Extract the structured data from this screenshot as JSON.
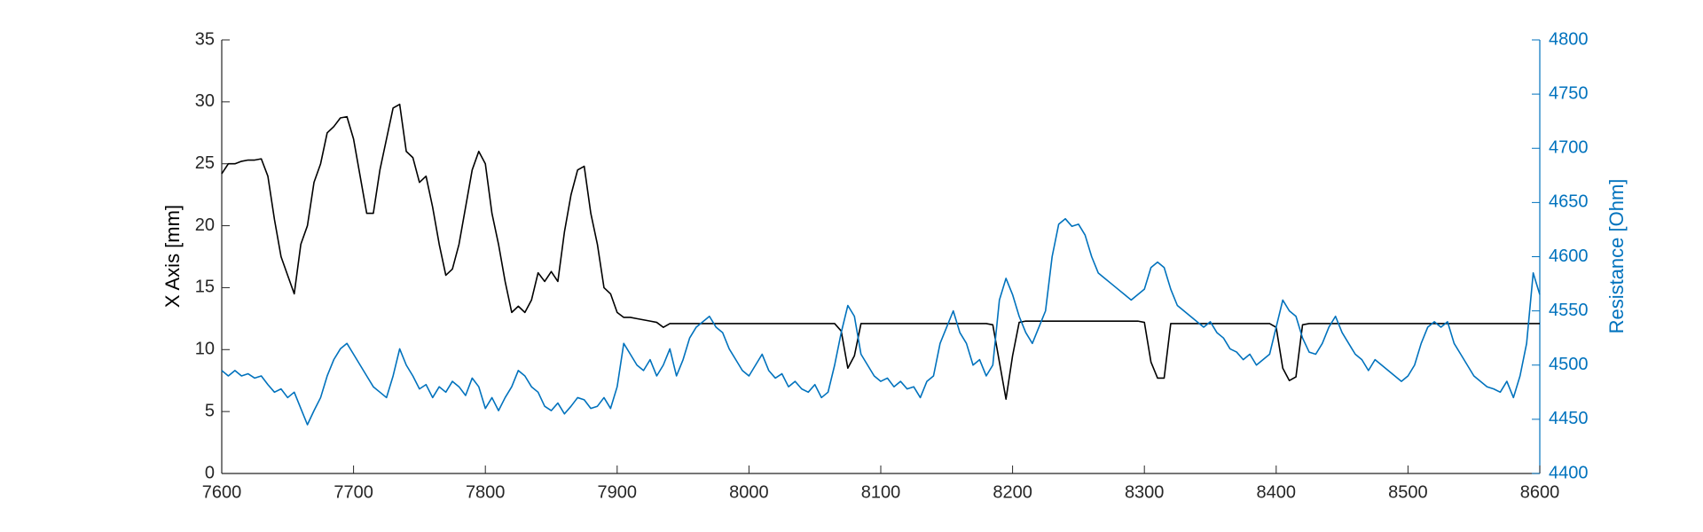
{
  "chart_data": {
    "type": "line",
    "ylabel": "X Axis [mm]",
    "y2label": "Resistance [Ohm]",
    "x": [
      7600,
      7605,
      7610,
      7615,
      7620,
      7625,
      7630,
      7635,
      7640,
      7645,
      7650,
      7655,
      7660,
      7665,
      7670,
      7675,
      7680,
      7685,
      7690,
      7695,
      7700,
      7705,
      7710,
      7715,
      7720,
      7725,
      7730,
      7735,
      7740,
      7745,
      7750,
      7755,
      7760,
      7765,
      7770,
      7775,
      7780,
      7785,
      7790,
      7795,
      7800,
      7805,
      7810,
      7815,
      7820,
      7825,
      7830,
      7835,
      7840,
      7845,
      7850,
      7855,
      7860,
      7865,
      7870,
      7875,
      7880,
      7885,
      7890,
      7895,
      7900,
      7905,
      7910,
      7915,
      7920,
      7925,
      7930,
      7935,
      7940,
      7945,
      7950,
      7955,
      7960,
      7965,
      7970,
      7975,
      7980,
      7985,
      7990,
      7995,
      8000,
      8005,
      8010,
      8015,
      8020,
      8025,
      8030,
      8035,
      8040,
      8045,
      8050,
      8055,
      8060,
      8065,
      8070,
      8075,
      8080,
      8085,
      8090,
      8095,
      8100,
      8105,
      8110,
      8115,
      8120,
      8125,
      8130,
      8135,
      8140,
      8145,
      8150,
      8155,
      8160,
      8165,
      8170,
      8175,
      8180,
      8185,
      8190,
      8195,
      8200,
      8205,
      8210,
      8215,
      8220,
      8225,
      8230,
      8235,
      8240,
      8245,
      8250,
      8255,
      8260,
      8265,
      8270,
      8275,
      8280,
      8285,
      8290,
      8295,
      8300,
      8305,
      8310,
      8315,
      8320,
      8325,
      8330,
      8335,
      8340,
      8345,
      8350,
      8355,
      8360,
      8365,
      8370,
      8375,
      8380,
      8385,
      8390,
      8395,
      8400,
      8405,
      8410,
      8415,
      8420,
      8425,
      8430,
      8435,
      8440,
      8445,
      8450,
      8455,
      8460,
      8465,
      8470,
      8475,
      8480,
      8485,
      8490,
      8495,
      8500,
      8505,
      8510,
      8515,
      8520,
      8525,
      8530,
      8535,
      8540,
      8545,
      8550,
      8555,
      8560,
      8565,
      8570,
      8575,
      8580,
      8585,
      8590,
      8595,
      8600
    ],
    "xlim": [
      7600,
      8600
    ],
    "xticks": [
      7600,
      7700,
      7800,
      7900,
      8000,
      8100,
      8200,
      8300,
      8400,
      8500,
      8600
    ],
    "ylim": [
      0,
      35
    ],
    "yticks": [
      0,
      5,
      10,
      15,
      20,
      25,
      30,
      35
    ],
    "y2lim": [
      4400,
      4800
    ],
    "y2ticks": [
      4400,
      4450,
      4500,
      4550,
      4600,
      4650,
      4700,
      4750,
      4800
    ],
    "series": [
      {
        "color": "#000000",
        "values": [
          24.2,
          25,
          25,
          25.2,
          25.3,
          25.3,
          25.4,
          24,
          20.5,
          17.5,
          16,
          14.5,
          18.5,
          20,
          23.5,
          25,
          27.5,
          28,
          28.7,
          28.8,
          27,
          24,
          21,
          21,
          24.5,
          27,
          29.5,
          29.8,
          26,
          25.5,
          23.5,
          24,
          21.5,
          18.5,
          16,
          16.5,
          18.5,
          21.5,
          24.5,
          26,
          25,
          21,
          18.5,
          15.5,
          13,
          13.5,
          13,
          14,
          16.2,
          15.5,
          16.3,
          15.5,
          19.5,
          22.5,
          24.5,
          24.8,
          21,
          18.5,
          15,
          14.5,
          13,
          12.6,
          12.6,
          12.5,
          12.4,
          12.3,
          12.2,
          11.8,
          12.1,
          12.1,
          12.1,
          12.1,
          12.1,
          12.1,
          12.1,
          12.1,
          12.1,
          12.1,
          12.1,
          12.1,
          12.1,
          12.1,
          12.1,
          12.1,
          12.1,
          12.1,
          12.1,
          12.1,
          12.1,
          12.1,
          12.1,
          12.1,
          12.1,
          12.1,
          11.5,
          8.5,
          9.5,
          12.1,
          12.1,
          12.1,
          12.1,
          12.1,
          12.1,
          12.1,
          12.1,
          12.1,
          12.1,
          12.1,
          12.1,
          12.1,
          12.1,
          12.1,
          12.1,
          12.1,
          12.1,
          12.1,
          12.1,
          12,
          9,
          6,
          9.5,
          12.2,
          12.3,
          12.3,
          12.3,
          12.3,
          12.3,
          12.3,
          12.3,
          12.3,
          12.3,
          12.3,
          12.3,
          12.3,
          12.3,
          12.3,
          12.3,
          12.3,
          12.3,
          12.3,
          12.2,
          9,
          7.7,
          7.7,
          12.1,
          12.1,
          12.1,
          12.1,
          12.1,
          12.1,
          12.1,
          12.1,
          12.1,
          12.1,
          12.1,
          12.1,
          12.1,
          12.1,
          12.1,
          12.1,
          11.8,
          8.5,
          7.5,
          7.8,
          12,
          12.1,
          12.1,
          12.1,
          12.1,
          12.1,
          12.1,
          12.1,
          12.1,
          12.1,
          12.1,
          12.1,
          12.1,
          12.1,
          12.1,
          12.1,
          12.1,
          12.1,
          12.1,
          12.1,
          12.1,
          12.1,
          12.1,
          12.1,
          12.1,
          12.1,
          12.1,
          12.1,
          12.1,
          12.1,
          12.1,
          12.1,
          12.1,
          12.1,
          12.1,
          12.1,
          12.1
        ]
      },
      {
        "color": "#0072BD",
        "axis": "y2",
        "values": [
          4495,
          4490,
          4495,
          4490,
          4492,
          4488,
          4490,
          4482,
          4475,
          4478,
          4470,
          4475,
          4460,
          4445,
          4458,
          4470,
          4490,
          4505,
          4515,
          4520,
          4510,
          4500,
          4490,
          4480,
          4475,
          4470,
          4490,
          4515,
          4500,
          4490,
          4478,
          4482,
          4470,
          4480,
          4475,
          4485,
          4480,
          4472,
          4488,
          4480,
          4460,
          4470,
          4458,
          4470,
          4480,
          4495,
          4490,
          4480,
          4475,
          4462,
          4458,
          4465,
          4455,
          4462,
          4470,
          4468,
          4460,
          4462,
          4470,
          4460,
          4480,
          4520,
          4510,
          4500,
          4495,
          4505,
          4490,
          4500,
          4515,
          4490,
          4505,
          4525,
          4535,
          4540,
          4545,
          4535,
          4530,
          4515,
          4505,
          4495,
          4490,
          4500,
          4510,
          4495,
          4488,
          4492,
          4480,
          4485,
          4478,
          4475,
          4482,
          4470,
          4475,
          4500,
          4530,
          4555,
          4545,
          4510,
          4500,
          4490,
          4485,
          4488,
          4480,
          4485,
          4478,
          4480,
          4470,
          4485,
          4490,
          4520,
          4535,
          4550,
          4530,
          4520,
          4500,
          4505,
          4490,
          4500,
          4560,
          4580,
          4565,
          4545,
          4530,
          4520,
          4535,
          4550,
          4600,
          4630,
          4635,
          4628,
          4630,
          4620,
          4600,
          4585,
          4580,
          4575,
          4570,
          4565,
          4560,
          4565,
          4570,
          4590,
          4595,
          4590,
          4570,
          4555,
          4550,
          4545,
          4540,
          4535,
          4540,
          4530,
          4525,
          4515,
          4512,
          4505,
          4510,
          4500,
          4505,
          4510,
          4535,
          4560,
          4550,
          4545,
          4525,
          4512,
          4510,
          4520,
          4535,
          4545,
          4530,
          4520,
          4510,
          4505,
          4495,
          4505,
          4500,
          4495,
          4490,
          4485,
          4490,
          4500,
          4520,
          4535,
          4540,
          4535,
          4540,
          4520,
          4510,
          4500,
          4490,
          4485,
          4480,
          4478,
          4475,
          4485,
          4470,
          4490,
          4520,
          4585,
          4565
        ]
      }
    ]
  }
}
